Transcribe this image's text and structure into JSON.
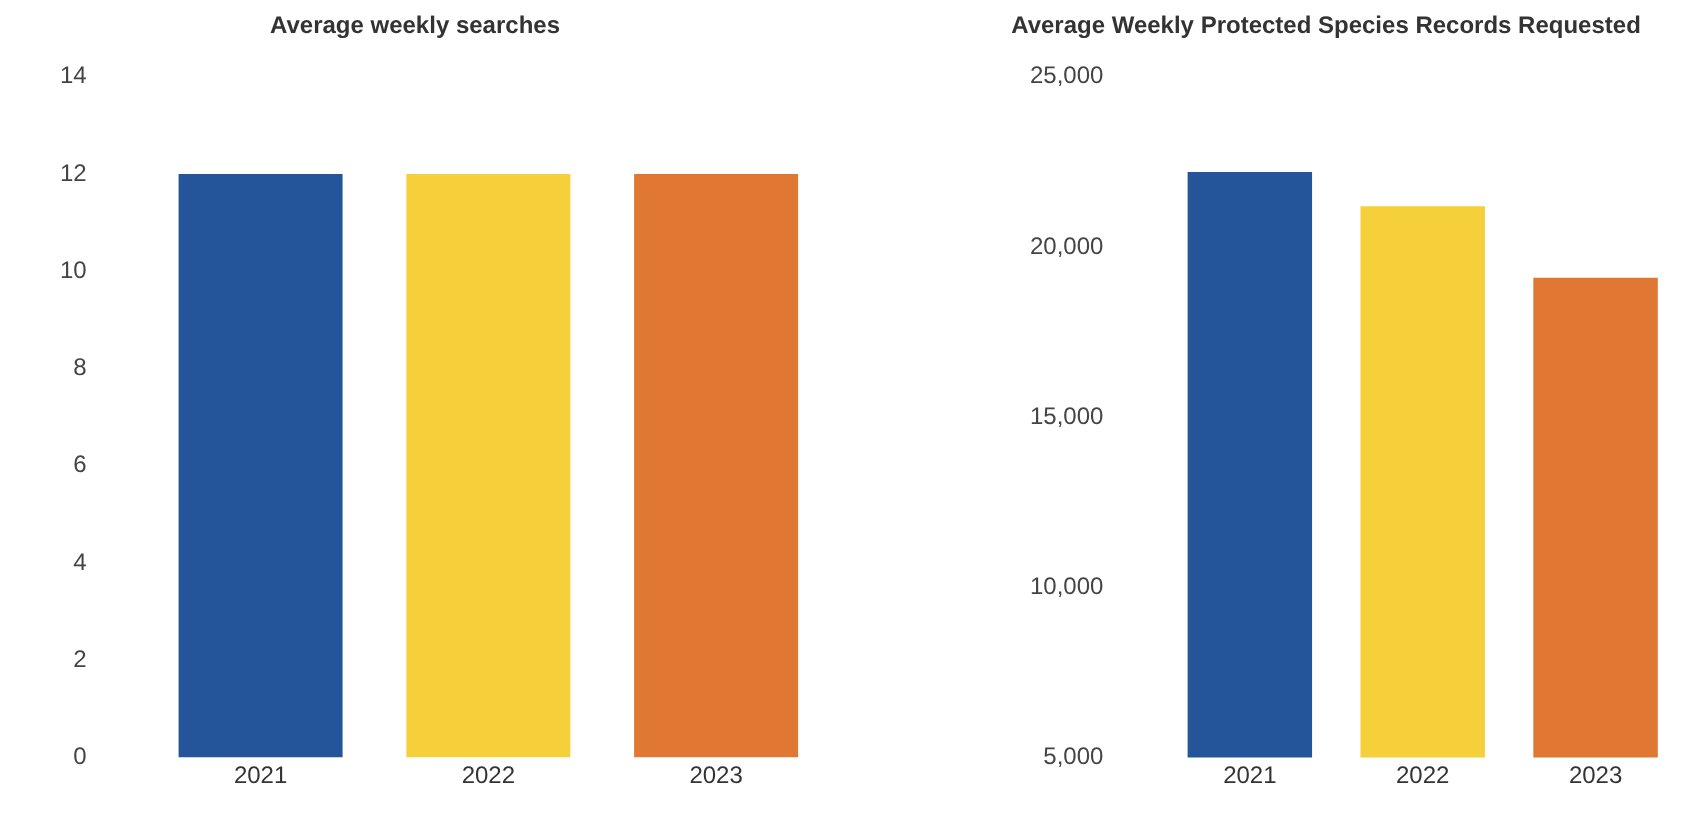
{
  "chart_data": [
    {
      "type": "bar",
      "title": "Average weekly searches",
      "categories": [
        "2021",
        "2022",
        "2023"
      ],
      "values": [
        12,
        12,
        12
      ],
      "colors": [
        "#24559b",
        "#f5d03a",
        "#e07833"
      ],
      "ylim": [
        0,
        14
      ],
      "yticks": [
        0,
        2,
        4,
        6,
        8,
        10,
        12,
        14
      ],
      "grid": false
    },
    {
      "type": "bar",
      "title": "Average Weekly Protected Species Records Requested",
      "categories": [
        "2021",
        "2022",
        "2023"
      ],
      "values": [
        22200,
        21200,
        19100
      ],
      "colors": [
        "#24559b",
        "#f5d03a",
        "#e07833"
      ],
      "ylim": [
        5000,
        25000
      ],
      "yticks": [
        {
          "value": 5000,
          "label": "5,000"
        },
        {
          "value": 10000,
          "label": "10,000"
        },
        {
          "value": 15000,
          "label": "15,000"
        },
        {
          "value": 20000,
          "label": "20,000"
        },
        {
          "value": 25000,
          "label": "25,000"
        }
      ],
      "grid": false
    }
  ]
}
